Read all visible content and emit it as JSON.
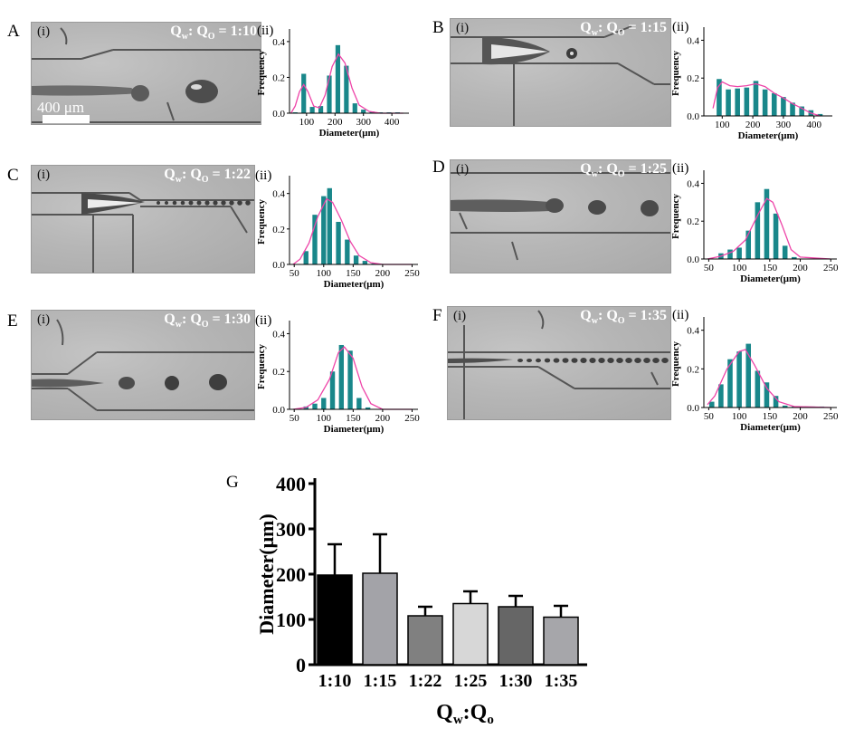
{
  "panel_letters": [
    "A",
    "B",
    "C",
    "D",
    "E",
    "F",
    "G"
  ],
  "photo_label": "(i)",
  "hist_label": "(ii)",
  "scale_bar_label": "400 μm",
  "colors": {
    "bar": "#19878a",
    "fit": "#ee44a8",
    "g_bars": [
      "#000000",
      "#a3a3a8",
      "#808080",
      "#d7d7d7",
      "#666666",
      "#a6a6aa"
    ]
  },
  "panels": [
    {
      "letter": "A",
      "photo_label": "(i)",
      "hist_label": "(ii)",
      "ratio": {
        "q_w": "Q",
        "w_sub": "w",
        "sep": ": Q",
        "o_sub": "O",
        "value": " = 1:10"
      }
    },
    {
      "letter": "B",
      "photo_label": "(i)",
      "hist_label": "(ii)",
      "ratio": {
        "q_w": "Q",
        "w_sub": "w",
        "sep": ": Q",
        "o_sub": "O",
        "value": " = 1:15"
      }
    },
    {
      "letter": "C",
      "photo_label": "(i)",
      "hist_label": "(ii)",
      "ratio": {
        "q_w": "Q",
        "w_sub": "w",
        "sep": ": Q",
        "o_sub": "O",
        "value": " = 1:22"
      }
    },
    {
      "letter": "D",
      "photo_label": "(i)",
      "hist_label": "(ii)",
      "ratio": {
        "q_w": "Q",
        "w_sub": "w",
        "sep": ": Q",
        "o_sub": "O",
        "value": " = 1:25"
      }
    },
    {
      "letter": "E",
      "photo_label": "(i)",
      "hist_label": "(ii)",
      "ratio": {
        "q_w": "Q",
        "w_sub": "w",
        "sep": ": Q",
        "o_sub": "O",
        "value": " = 1:30"
      }
    },
    {
      "letter": "F",
      "photo_label": "(i)",
      "hist_label": "(ii)",
      "ratio": {
        "q_w": "Q",
        "w_sub": "w",
        "sep": ": Q",
        "o_sub": "O",
        "value": " = 1:35"
      }
    }
  ],
  "chart_data": [
    {
      "id": "A-ii",
      "type": "bar",
      "xlabel": "Diameter(μm)",
      "ylabel": "Frequency",
      "xlim": [
        40,
        460
      ],
      "ylim": [
        0,
        0.45
      ],
      "xticks": [
        100,
        200,
        300,
        400
      ],
      "yticks": [
        0.0,
        0.2,
        0.4
      ],
      "bin_centers": [
        60,
        90,
        120,
        150,
        180,
        210,
        240,
        270,
        300,
        330,
        360,
        390,
        420
      ],
      "values": [
        0.005,
        0.22,
        0.035,
        0.04,
        0.21,
        0.38,
        0.265,
        0.055,
        0.02,
        0.01,
        0.005,
        0.005,
        0.005
      ],
      "fit": [
        [
          45,
          0.0
        ],
        [
          60,
          0.04
        ],
        [
          75,
          0.12
        ],
        [
          90,
          0.16
        ],
        [
          105,
          0.12
        ],
        [
          125,
          0.04
        ],
        [
          145,
          0.03
        ],
        [
          165,
          0.1
        ],
        [
          190,
          0.26
        ],
        [
          212,
          0.33
        ],
        [
          235,
          0.28
        ],
        [
          260,
          0.14
        ],
        [
          285,
          0.045
        ],
        [
          320,
          0.01
        ],
        [
          360,
          0.0
        ],
        [
          440,
          0.0
        ]
      ]
    },
    {
      "id": "B-ii",
      "type": "bar",
      "xlabel": "Diameter(μm)",
      "ylabel": "Frequency",
      "xlim": [
        40,
        460
      ],
      "ylim": [
        0,
        0.45
      ],
      "xticks": [
        100,
        200,
        300,
        400
      ],
      "yticks": [
        0.0,
        0.2,
        0.4
      ],
      "bin_centers": [
        90,
        120,
        150,
        180,
        210,
        240,
        270,
        300,
        330,
        360,
        390,
        420
      ],
      "values": [
        0.195,
        0.14,
        0.145,
        0.15,
        0.185,
        0.14,
        0.12,
        0.1,
        0.07,
        0.05,
        0.03,
        0.01
      ],
      "fit": [
        [
          70,
          0.04
        ],
        [
          85,
          0.15
        ],
        [
          100,
          0.18
        ],
        [
          125,
          0.16
        ],
        [
          150,
          0.155
        ],
        [
          180,
          0.16
        ],
        [
          210,
          0.17
        ],
        [
          240,
          0.155
        ],
        [
          270,
          0.12
        ],
        [
          300,
          0.095
        ],
        [
          330,
          0.065
        ],
        [
          360,
          0.04
        ],
        [
          390,
          0.015
        ],
        [
          420,
          0.0
        ]
      ]
    },
    {
      "id": "C-ii",
      "type": "bar",
      "xlabel": "Diameter(μm)",
      "ylabel": "Frequency",
      "xlim": [
        42,
        260
      ],
      "ylim": [
        0,
        0.48
      ],
      "xticks": [
        50,
        100,
        150,
        200,
        250
      ],
      "yticks": [
        0.0,
        0.2,
        0.4
      ],
      "bin_centers": [
        70,
        85,
        100,
        110,
        125,
        140,
        155,
        170,
        185
      ],
      "values": [
        0.075,
        0.28,
        0.385,
        0.43,
        0.24,
        0.14,
        0.05,
        0.02,
        0.005
      ],
      "fit": [
        [
          48,
          0.0
        ],
        [
          60,
          0.03
        ],
        [
          75,
          0.12
        ],
        [
          90,
          0.27
        ],
        [
          105,
          0.37
        ],
        [
          115,
          0.35
        ],
        [
          130,
          0.25
        ],
        [
          145,
          0.13
        ],
        [
          160,
          0.05
        ],
        [
          180,
          0.01
        ],
        [
          200,
          0.0
        ],
        [
          250,
          0.0
        ]
      ]
    },
    {
      "id": "D-ii",
      "type": "bar",
      "xlabel": "Diameter(μm)",
      "ylabel": "Frequency",
      "xlim": [
        42,
        260
      ],
      "ylim": [
        0,
        0.45
      ],
      "xticks": [
        50,
        100,
        150,
        200,
        250
      ],
      "yticks": [
        0.0,
        0.2,
        0.4
      ],
      "bin_centers": [
        70,
        85,
        100,
        115,
        130,
        145,
        160,
        175,
        190
      ],
      "values": [
        0.03,
        0.05,
        0.06,
        0.15,
        0.3,
        0.37,
        0.24,
        0.07,
        0.01
      ],
      "fit": [
        [
          48,
          0.0
        ],
        [
          70,
          0.015
        ],
        [
          90,
          0.04
        ],
        [
          110,
          0.1
        ],
        [
          130,
          0.23
        ],
        [
          145,
          0.32
        ],
        [
          155,
          0.3
        ],
        [
          170,
          0.18
        ],
        [
          185,
          0.05
        ],
        [
          200,
          0.01
        ],
        [
          250,
          0.0
        ]
      ]
    },
    {
      "id": "E-ii",
      "type": "bar",
      "xlabel": "Diameter(μm)",
      "ylabel": "Frequency",
      "xlim": [
        42,
        260
      ],
      "ylim": [
        0,
        0.45
      ],
      "xticks": [
        50,
        100,
        150,
        200,
        250
      ],
      "yticks": [
        0.0,
        0.2,
        0.4
      ],
      "bin_centers": [
        70,
        85,
        100,
        115,
        130,
        145,
        160,
        175
      ],
      "values": [
        0.015,
        0.03,
        0.06,
        0.2,
        0.34,
        0.31,
        0.06,
        0.01
      ],
      "fit": [
        [
          48,
          0.0
        ],
        [
          70,
          0.01
        ],
        [
          90,
          0.05
        ],
        [
          110,
          0.16
        ],
        [
          125,
          0.3
        ],
        [
          135,
          0.33
        ],
        [
          150,
          0.27
        ],
        [
          165,
          0.12
        ],
        [
          180,
          0.03
        ],
        [
          200,
          0.0
        ],
        [
          250,
          0.0
        ]
      ]
    },
    {
      "id": "F-ii",
      "type": "bar",
      "xlabel": "Diameter(μm)",
      "ylabel": "Frequency",
      "xlim": [
        42,
        260
      ],
      "ylim": [
        0,
        0.45
      ],
      "xticks": [
        50,
        100,
        150,
        200,
        250
      ],
      "yticks": [
        0.0,
        0.2,
        0.4
      ],
      "bin_centers": [
        55,
        70,
        85,
        100,
        115,
        130,
        145,
        160,
        175,
        190,
        205,
        220,
        235
      ],
      "values": [
        0.03,
        0.12,
        0.25,
        0.29,
        0.33,
        0.19,
        0.13,
        0.06,
        0.01,
        0.005,
        0.0,
        0.005,
        0.005
      ],
      "fit": [
        [
          48,
          0.015
        ],
        [
          60,
          0.06
        ],
        [
          80,
          0.2
        ],
        [
          100,
          0.29
        ],
        [
          110,
          0.3
        ],
        [
          125,
          0.22
        ],
        [
          145,
          0.1
        ],
        [
          165,
          0.03
        ],
        [
          190,
          0.005
        ],
        [
          250,
          0.0
        ]
      ]
    },
    {
      "id": "G",
      "type": "bar",
      "xlabel_main": "Q",
      "xlabel_sub1": "w",
      "xlabel_mid": ":Q",
      "xlabel_sub2": "o",
      "ylabel": "Diameter(μm)",
      "ylim": [
        0,
        400
      ],
      "yticks": [
        0,
        100,
        200,
        300,
        400
      ],
      "categories": [
        "1:10",
        "1:15",
        "1:22",
        "1:25",
        "1:30",
        "1:35"
      ],
      "values": [
        198,
        202,
        108,
        135,
        128,
        105
      ],
      "errors": [
        68,
        86,
        20,
        27,
        24,
        25
      ]
    }
  ]
}
